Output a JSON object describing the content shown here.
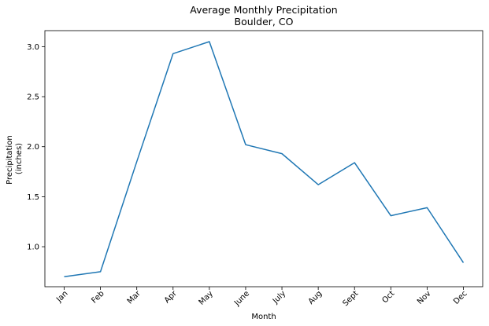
{
  "chart_data": {
    "type": "line",
    "title": "Average Monthly Precipitation",
    "subtitle": "Boulder, CO",
    "xlabel": "Month",
    "ylabel_lines": [
      "Precipitation",
      "(inches)"
    ],
    "categories": [
      "Jan",
      "Feb",
      "Mar",
      "Apr",
      "May",
      "June",
      "July",
      "Aug",
      "Sept",
      "Oct",
      "Nov",
      "Dec"
    ],
    "series": [
      {
        "values": [
          0.7,
          0.75,
          1.85,
          2.93,
          3.05,
          2.02,
          1.93,
          1.62,
          1.84,
          1.31,
          1.39,
          0.84
        ]
      }
    ],
    "ylim": [
      0.6,
      3.16
    ],
    "yticks": [
      1.0,
      1.5,
      2.0,
      2.5,
      3.0
    ],
    "ytick_labels": [
      "1.0",
      "1.5",
      "2.0",
      "2.5",
      "3.0"
    ],
    "grid": false,
    "line_color": "#1f77b4"
  }
}
